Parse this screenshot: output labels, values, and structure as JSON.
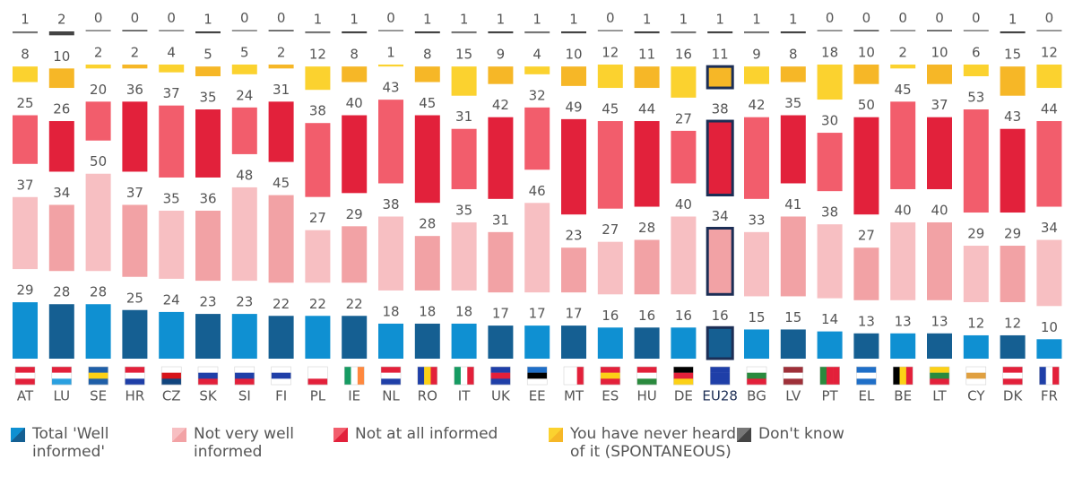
{
  "chart_data": {
    "type": "bar",
    "stacked": true,
    "categories": [
      "AT",
      "LU",
      "SE",
      "HR",
      "CZ",
      "SK",
      "SI",
      "FI",
      "PL",
      "IE",
      "NL",
      "RO",
      "IT",
      "UK",
      "EE",
      "MT",
      "ES",
      "HU",
      "DE",
      "EU28",
      "BG",
      "LV",
      "PT",
      "EL",
      "BE",
      "LT",
      "CY",
      "DK",
      "FR"
    ],
    "highlight": "EU28",
    "series": [
      {
        "name": "Total 'Well informed'",
        "colors": [
          "#0f90d2",
          "#155f92"
        ],
        "values": [
          29,
          28,
          28,
          25,
          24,
          23,
          23,
          22,
          22,
          22,
          18,
          18,
          18,
          17,
          17,
          17,
          16,
          16,
          16,
          16,
          15,
          15,
          14,
          13,
          13,
          13,
          12,
          12,
          10
        ]
      },
      {
        "name": "Not very well informed",
        "colors": [
          "#f7bfc2",
          "#f2a2a5"
        ],
        "values": [
          37,
          34,
          50,
          37,
          35,
          36,
          48,
          45,
          27,
          29,
          38,
          28,
          35,
          31,
          46,
          23,
          27,
          28,
          40,
          34,
          33,
          41,
          38,
          27,
          40,
          40,
          29,
          29,
          34
        ]
      },
      {
        "name": "Not at all informed",
        "colors": [
          "#f25d6c",
          "#e2213b"
        ],
        "values": [
          25,
          26,
          20,
          36,
          37,
          35,
          24,
          31,
          38,
          40,
          43,
          45,
          31,
          42,
          32,
          49,
          45,
          44,
          27,
          38,
          42,
          35,
          30,
          50,
          45,
          37,
          53,
          43,
          44
        ]
      },
      {
        "name": "You have never heard of it (SPONTANEOUS)",
        "colors": [
          "#fbd22f",
          "#f6b727"
        ],
        "values": [
          8,
          10,
          2,
          2,
          4,
          5,
          5,
          2,
          12,
          8,
          1,
          8,
          15,
          9,
          4,
          10,
          12,
          11,
          16,
          11,
          9,
          8,
          18,
          10,
          2,
          10,
          6,
          15,
          12
        ]
      },
      {
        "name": "Don't know",
        "colors": [
          "#777777",
          "#444444"
        ],
        "values": [
          1,
          2,
          0,
          0,
          0,
          1,
          0,
          0,
          1,
          1,
          0,
          1,
          1,
          1,
          1,
          1,
          0,
          1,
          1,
          1,
          1,
          1,
          0,
          0,
          0,
          0,
          0,
          1,
          0
        ]
      }
    ]
  }
}
